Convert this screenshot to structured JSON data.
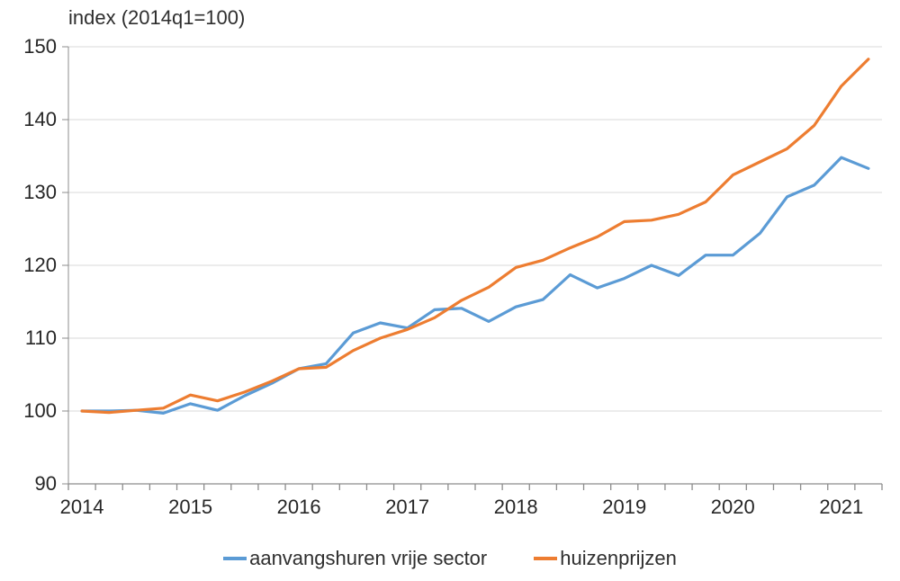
{
  "title": "index (2014q1=100)",
  "legend": [
    {
      "label": "aanvangshuren vrije sector",
      "color": "#5B9BD5"
    },
    {
      "label": "huizenprijzen",
      "color": "#ED7D31"
    }
  ],
  "axis_colors": {
    "gridline": "#D9D9D9",
    "axis_line": "#8C8C8C",
    "tick_text": "#262626"
  },
  "chart_data": {
    "type": "line",
    "title": "index (2014q1=100)",
    "x": [
      "2014q1",
      "2014q2",
      "2014q3",
      "2014q4",
      "2015q1",
      "2015q2",
      "2015q3",
      "2015q4",
      "2016q1",
      "2016q2",
      "2016q3",
      "2016q4",
      "2017q1",
      "2017q2",
      "2017q3",
      "2017q4",
      "2018q1",
      "2018q2",
      "2018q3",
      "2018q4",
      "2019q1",
      "2019q2",
      "2019q3",
      "2019q4",
      "2020q1",
      "2020q2",
      "2020q3",
      "2020q4",
      "2021q1",
      "2021q2"
    ],
    "x_tick_labels": [
      "2014",
      "2015",
      "2016",
      "2017",
      "2018",
      "2019",
      "2020",
      "2021"
    ],
    "y_ticks": [
      90,
      100,
      110,
      120,
      130,
      140,
      150
    ],
    "ylim": [
      90,
      150
    ],
    "grid": "horizontal",
    "legend_position": "bottom",
    "series": [
      {
        "name": "aanvangshuren vrije sector",
        "color": "#5B9BD5",
        "values": [
          100.0,
          100.0,
          100.1,
          99.7,
          101.0,
          100.1,
          102.1,
          103.8,
          105.8,
          106.5,
          110.7,
          112.1,
          111.4,
          113.9,
          114.1,
          112.3,
          114.3,
          115.3,
          118.7,
          116.9,
          118.2,
          120.0,
          118.6,
          121.4,
          121.4,
          124.4,
          129.4,
          131.0,
          134.8,
          133.3
        ]
      },
      {
        "name": "huizenprijzen",
        "color": "#ED7D31",
        "values": [
          100.0,
          99.8,
          100.1,
          100.4,
          102.2,
          101.4,
          102.6,
          104.1,
          105.8,
          106.0,
          108.3,
          110.0,
          111.2,
          112.8,
          115.2,
          117.0,
          119.7,
          120.7,
          122.4,
          123.9,
          126.0,
          126.2,
          127.0,
          128.7,
          132.4,
          134.2,
          136.0,
          139.2,
          144.6,
          148.3
        ]
      }
    ]
  }
}
